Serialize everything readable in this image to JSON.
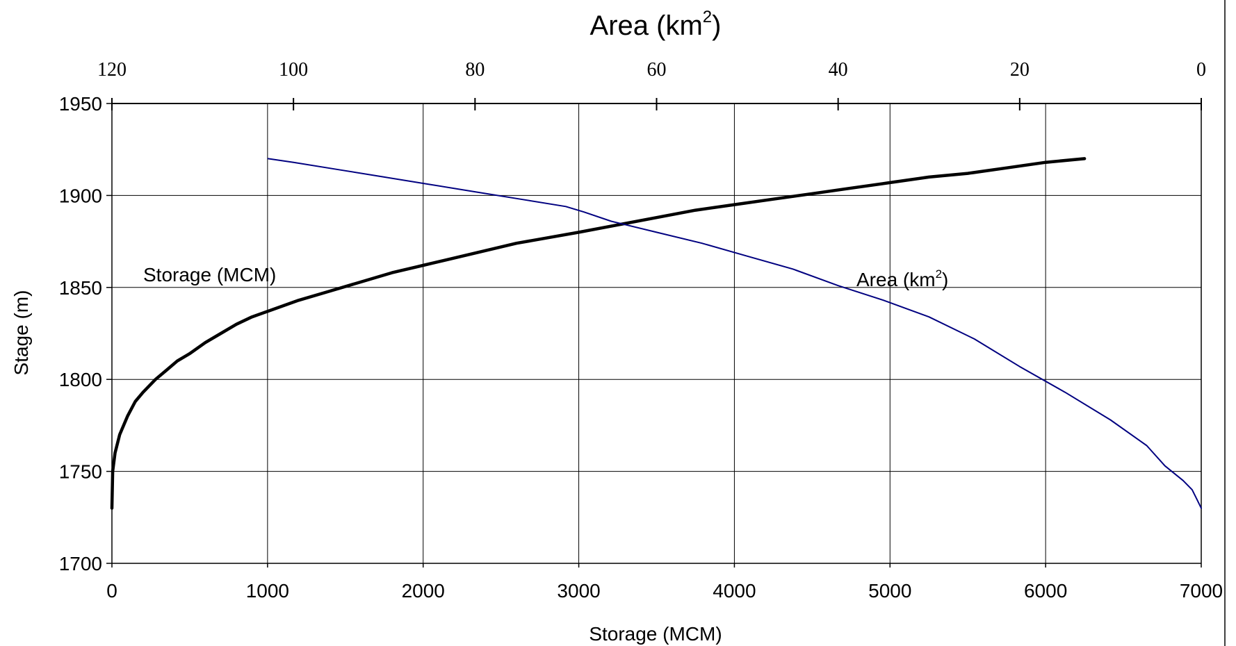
{
  "chart_data": {
    "type": "line",
    "title": "Area (km",
    "title_sup": "2",
    "title_tail": ")",
    "xlabel": "Storage (MCM)",
    "ylabel": "Stage (m)",
    "x_ticks": [
      "0",
      "1000",
      "2000",
      "3000",
      "4000",
      "5000",
      "6000",
      "7000"
    ],
    "x_tick_values": [
      0,
      1000,
      2000,
      3000,
      4000,
      5000,
      6000,
      7000
    ],
    "y_ticks": [
      "1700",
      "1750",
      "1800",
      "1850",
      "1900",
      "1950"
    ],
    "y_tick_values": [
      1700,
      1750,
      1800,
      1850,
      1900,
      1950
    ],
    "x2_ticks": [
      "120",
      "100",
      "80",
      "60",
      "40",
      "20",
      "0"
    ],
    "x2_tick_values": [
      120,
      100,
      80,
      60,
      40,
      20,
      0
    ],
    "xlim": [
      0,
      7000
    ],
    "ylim": [
      1700,
      1950
    ],
    "x2lim": [
      120,
      0
    ],
    "grid": true,
    "series": [
      {
        "name": "Storage (MCM)",
        "axis": "bottom",
        "color": "#000000",
        "x": [
          0,
          5,
          20,
          50,
          100,
          150,
          200,
          280,
          350,
          420,
          500,
          600,
          700,
          800,
          900,
          1000,
          1200,
          1400,
          1600,
          1800,
          2000,
          2200,
          2400,
          2600,
          2800,
          3000,
          3250,
          3500,
          3750,
          4000,
          4250,
          4500,
          4750,
          5000,
          5250,
          5500,
          5750,
          6000,
          6250
        ],
        "y": [
          1730,
          1750,
          1760,
          1770,
          1780,
          1788,
          1793,
          1800,
          1805,
          1810,
          1814,
          1820,
          1825,
          1830,
          1834,
          1837,
          1843,
          1848,
          1853,
          1858,
          1862,
          1866,
          1870,
          1874,
          1877,
          1880,
          1884,
          1888,
          1892,
          1895,
          1898,
          1901,
          1904,
          1907,
          1910,
          1912,
          1915,
          1918,
          1920
        ]
      },
      {
        "name": "Area (km²)",
        "axis": "top",
        "color": "#000080",
        "x": [
          102.8,
          100,
          95,
          90,
          85,
          80,
          75,
          70,
          68,
          65,
          60,
          55,
          50,
          45,
          40,
          35,
          30,
          25,
          20,
          15,
          10,
          6,
          4,
          2,
          1,
          0.5,
          0
        ],
        "y": [
          1920,
          1918,
          1914,
          1910,
          1906,
          1902,
          1898,
          1894,
          1891,
          1886,
          1880,
          1874,
          1867,
          1860,
          1851,
          1843,
          1834,
          1822,
          1807,
          1793,
          1778,
          1764,
          1753,
          1745,
          1740,
          1735,
          1730
        ]
      }
    ],
    "annotations": [
      {
        "text": "Storage (MCM)"
      },
      {
        "text": "Area (km",
        "sup": "2",
        "tail": ")"
      }
    ]
  }
}
